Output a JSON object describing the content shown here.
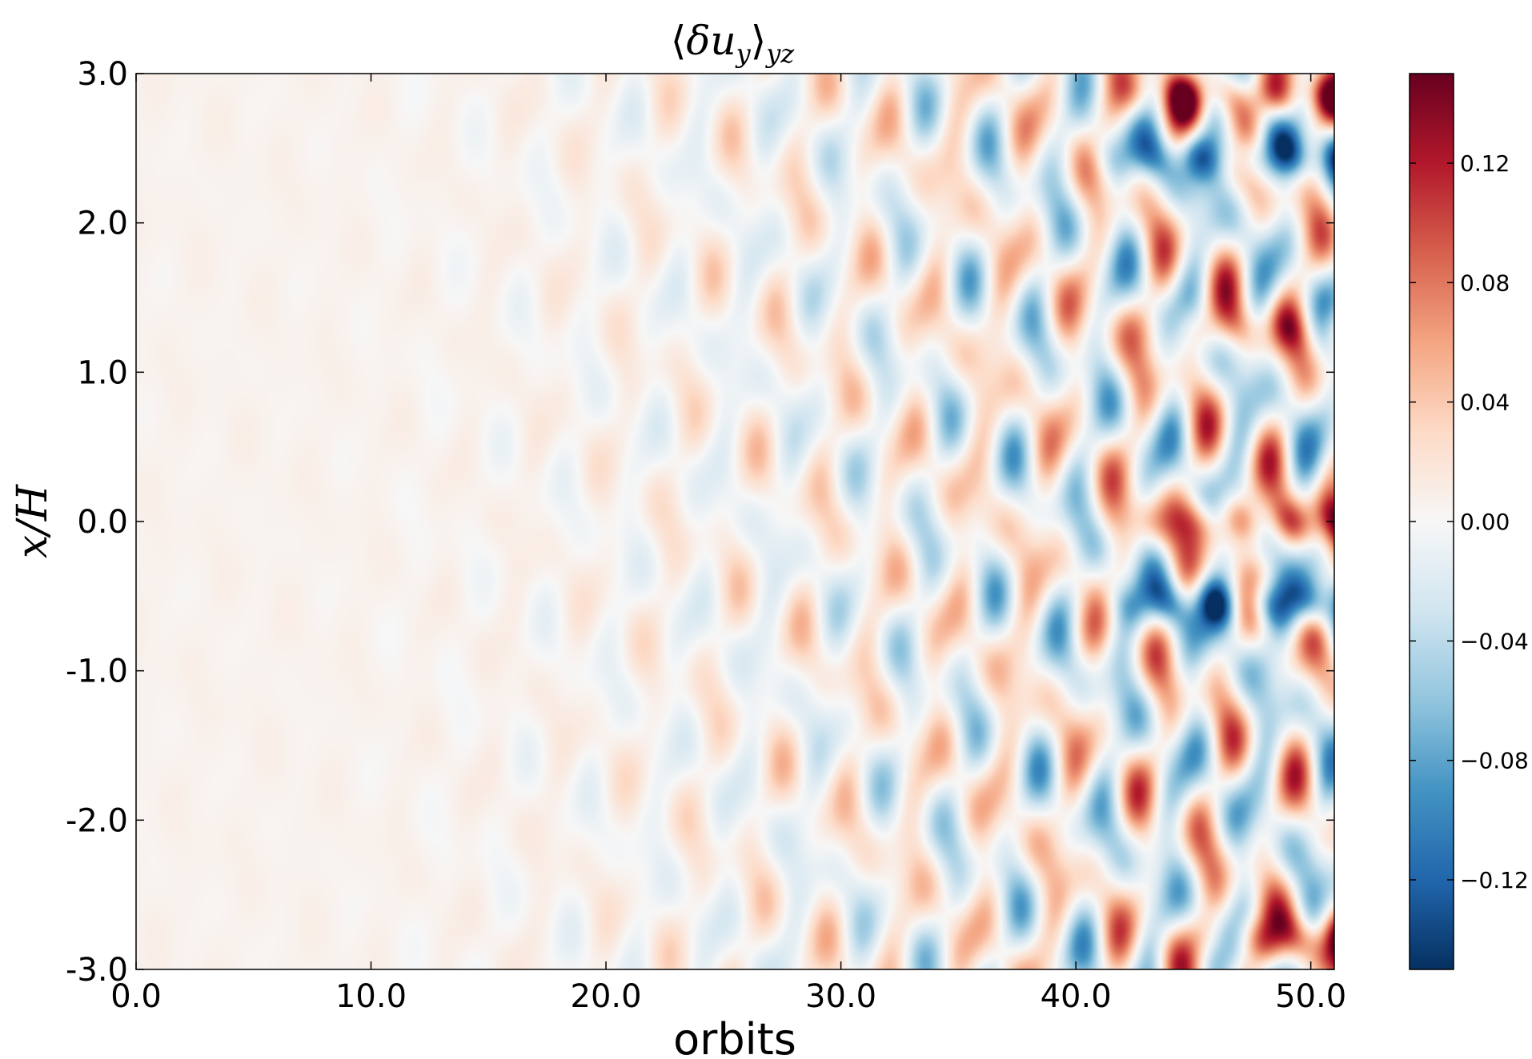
{
  "chart_data": {
    "type": "heatmap",
    "title": "⟨δu_y⟩_yz",
    "title_parts": {
      "open": "⟨",
      "main": "δu",
      "sub_main": "y",
      "close": "⟩",
      "sub_outer": "yz"
    },
    "xlabel": "orbits",
    "ylabel": "x/H",
    "xlim": [
      0,
      51
    ],
    "ylim": [
      -3,
      3
    ],
    "x_ticks": [
      0,
      10,
      20,
      30,
      40,
      50
    ],
    "x_tick_labels": [
      "0.0",
      "10.0",
      "20.0",
      "30.0",
      "40.0",
      "50.0"
    ],
    "y_ticks": [
      3,
      2,
      1,
      0,
      -1,
      -2,
      -3
    ],
    "y_tick_labels": [
      "3.0",
      "2.0",
      "1.0",
      "0.0",
      "-1.0",
      "-2.0",
      "-3.0"
    ],
    "colorbar": {
      "range": [
        -0.15,
        0.15
      ],
      "ticks": [
        0.12,
        0.08,
        0.04,
        0.0,
        -0.04,
        -0.08,
        -0.12
      ],
      "tick_labels": [
        "0.12",
        "0.08",
        "0.04",
        "0.00",
        "−0.04",
        "−0.08",
        "−0.12"
      ],
      "colormap": "RdBu_r",
      "colors": [
        "#053061",
        "#2166ac",
        "#4393c3",
        "#92c5de",
        "#d1e5f0",
        "#f7f7f7",
        "#fddbc7",
        "#f4a582",
        "#d6604d",
        "#b2182b",
        "#67001f"
      ]
    },
    "bands": [
      {
        "x_start": 39,
        "y_center": 2.85,
        "value": 0.1
      },
      {
        "x_start": 39,
        "y_center": 2.45,
        "value": -0.1
      },
      {
        "x_start": 40,
        "y_center": 1.3,
        "value": 0.05
      },
      {
        "x_start": 40,
        "y_center": 0.0,
        "value": 0.09
      },
      {
        "x_start": 39,
        "y_center": -0.55,
        "value": -0.11
      },
      {
        "x_start": 43,
        "y_center": -2.8,
        "value": 0.1
      }
    ]
  }
}
